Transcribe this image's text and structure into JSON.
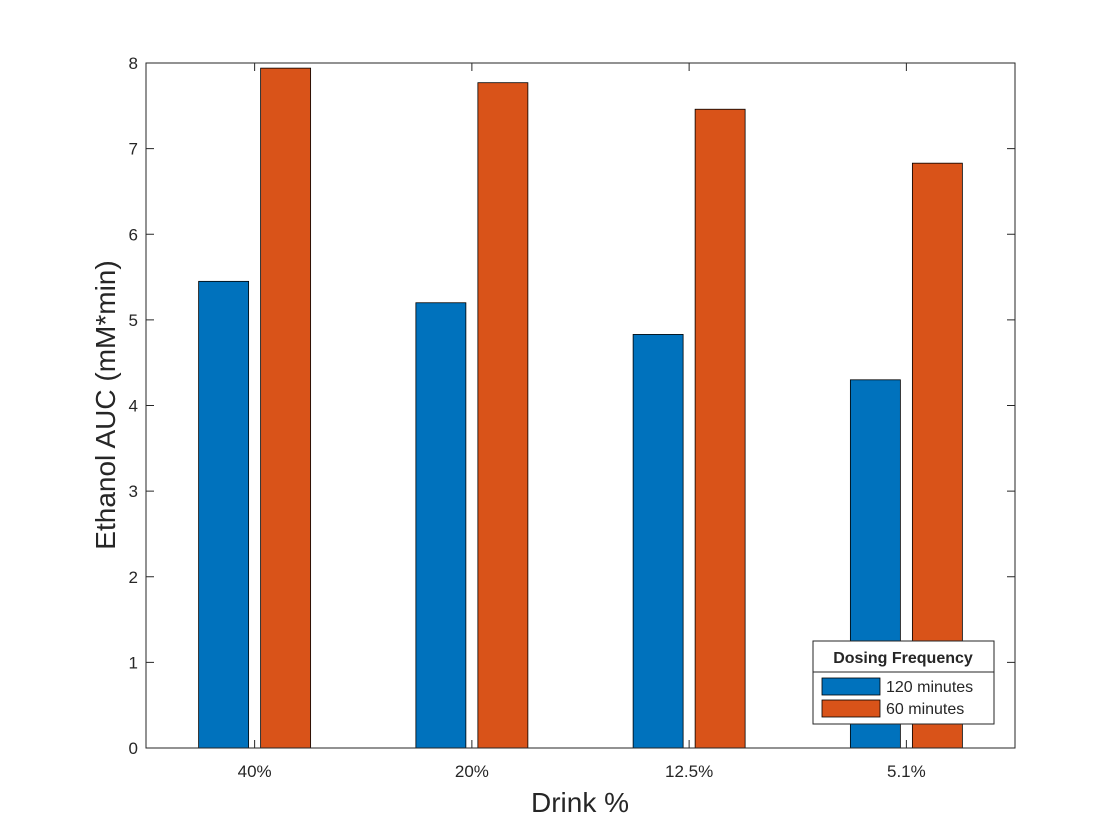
{
  "chart_data": {
    "type": "bar",
    "xlabel": "Drink %",
    "ylabel": "Ethanol AUC (mM*min)",
    "categories": [
      "40%",
      "20%",
      "12.5%",
      "5.1%"
    ],
    "series": [
      {
        "name": "120 minutes",
        "color": "#0072BD",
        "values": [
          5.45,
          5.2,
          4.83,
          4.3
        ]
      },
      {
        "name": "60 minutes",
        "color": "#D95319",
        "values": [
          7.94,
          7.77,
          7.46,
          6.83
        ]
      }
    ],
    "ylim": [
      0,
      8
    ],
    "yticks": [
      0,
      1,
      2,
      3,
      4,
      5,
      6,
      7,
      8
    ],
    "grid": false,
    "legend": {
      "title": "Dosing Frequency",
      "position": "bottom-right"
    }
  }
}
